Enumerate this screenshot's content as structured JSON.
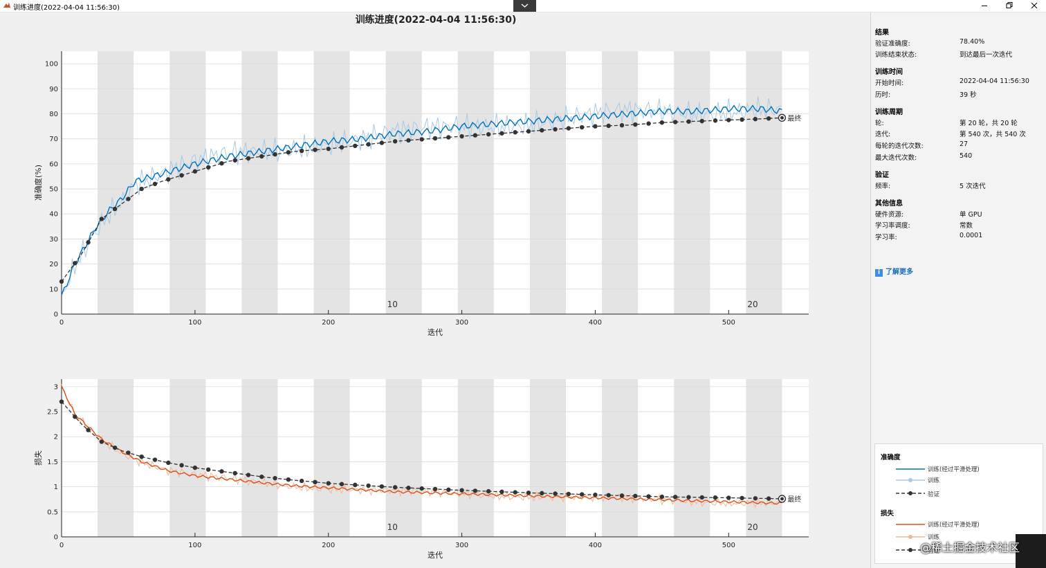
{
  "window": {
    "title": "训练进度(2022-04-04 11:56:30)"
  },
  "main_title": "训练进度(2022-04-04 11:56:30)",
  "final_label": "最终",
  "results_panel": {
    "results": {
      "title": "结果",
      "accuracy_label": "验证准确度:",
      "accuracy_value": "78.40%",
      "status_label": "训练结束状态:",
      "status_value": "到达最后一次迭代"
    },
    "time": {
      "title": "训练时间",
      "start_label": "开始时间:",
      "start_value": "2022-04-04 11:56:30",
      "elapsed_label": "历时:",
      "elapsed_value": "39 秒"
    },
    "cycle": {
      "title": "训练周期",
      "epoch_label": "轮:",
      "epoch_value": "第 20 轮，共 20 轮",
      "iter_label": "迭代:",
      "iter_value": "第 540 次，共 540 次",
      "iter_per_epoch_label": "每轮的迭代次数:",
      "iter_per_epoch_value": "27",
      "max_iter_label": "最大迭代次数:",
      "max_iter_value": "540"
    },
    "validation": {
      "title": "验证",
      "freq_label": "频率:",
      "freq_value": "5 次迭代"
    },
    "other": {
      "title": "其他信息",
      "hw_label": "硬件资源:",
      "hw_value": "单 GPU",
      "sched_label": "学习率调度:",
      "sched_value": "常数",
      "lr_label": "学习率:",
      "lr_value": "0.0001"
    },
    "learn_more": "了解更多"
  },
  "legend": {
    "accuracy_title": "准确度",
    "loss_title": "损失",
    "smoothed": "训练(经过平滑处理)",
    "train": "训练",
    "validation": "验证"
  },
  "colors": {
    "accuracy": "#0072bd",
    "accuracy_light": "#a9c9e4",
    "loss": "#d95319",
    "loss_light": "#f2b79a",
    "validation": "#333333",
    "epoch_band": "#e4e4e4"
  },
  "watermark": "@稀土掘金技术社区",
  "chart_data": [
    {
      "type": "line",
      "xlabel": "迭代",
      "ylabel": "准确度(%)",
      "xlim": [
        0,
        560
      ],
      "ylim": [
        0,
        105
      ],
      "xticks": [
        0,
        100,
        200,
        300,
        400,
        500
      ],
      "yticks": [
        0,
        10,
        20,
        30,
        40,
        50,
        60,
        70,
        80,
        90,
        100
      ],
      "epoch_labels": [
        {
          "epoch": "10",
          "x": 248
        },
        {
          "epoch": "20",
          "x": 518
        }
      ],
      "series": [
        {
          "name": "训练(经过平滑处理)",
          "x": [
            0,
            10,
            25,
            35,
            45,
            55,
            75,
            100,
            125,
            150,
            175,
            200,
            225,
            250,
            275,
            300,
            325,
            350,
            375,
            400,
            425,
            450,
            475,
            500,
            525,
            540
          ],
          "y": [
            7,
            20,
            34,
            41,
            46,
            53,
            56,
            60,
            63,
            65,
            67,
            69,
            70,
            72,
            73,
            75,
            76,
            77,
            78,
            79,
            80,
            81,
            81,
            82,
            82,
            81
          ]
        },
        {
          "name": "验证",
          "x": [
            0,
            15,
            30,
            45,
            60,
            75,
            100,
            125,
            150,
            175,
            200,
            225,
            250,
            275,
            300,
            325,
            350,
            375,
            400,
            425,
            450,
            475,
            500,
            525,
            540
          ],
          "y": [
            13,
            24,
            38,
            44,
            50,
            53,
            57,
            61,
            63,
            65,
            66,
            67.5,
            69,
            70,
            71,
            72,
            73,
            74,
            75,
            75.5,
            76.5,
            77,
            77.5,
            78,
            78.4
          ]
        }
      ]
    },
    {
      "type": "line",
      "xlabel": "迭代",
      "ylabel": "损失",
      "xlim": [
        0,
        560
      ],
      "ylim": [
        0,
        3.15
      ],
      "xticks": [
        0,
        100,
        200,
        300,
        400,
        500
      ],
      "yticks": [
        0,
        0.5,
        1,
        1.5,
        2,
        2.5,
        3
      ],
      "epoch_labels": [
        {
          "epoch": "10",
          "x": 248
        },
        {
          "epoch": "20",
          "x": 518
        }
      ],
      "series": [
        {
          "name": "训练(经过平滑处理)",
          "x": [
            0,
            10,
            20,
            30,
            45,
            60,
            80,
            100,
            125,
            150,
            175,
            200,
            250,
            300,
            350,
            400,
            450,
            500,
            540
          ],
          "y": [
            3.0,
            2.45,
            2.2,
            1.95,
            1.7,
            1.5,
            1.32,
            1.22,
            1.15,
            1.08,
            1.02,
            0.98,
            0.9,
            0.86,
            0.82,
            0.78,
            0.74,
            0.7,
            0.67
          ]
        },
        {
          "name": "验证",
          "x": [
            0,
            15,
            30,
            45,
            60,
            80,
            100,
            125,
            150,
            175,
            200,
            250,
            300,
            350,
            400,
            450,
            500,
            540
          ],
          "y": [
            2.7,
            2.25,
            1.9,
            1.72,
            1.6,
            1.48,
            1.38,
            1.29,
            1.2,
            1.13,
            1.07,
            0.99,
            0.93,
            0.88,
            0.84,
            0.8,
            0.78,
            0.76
          ]
        }
      ]
    }
  ]
}
